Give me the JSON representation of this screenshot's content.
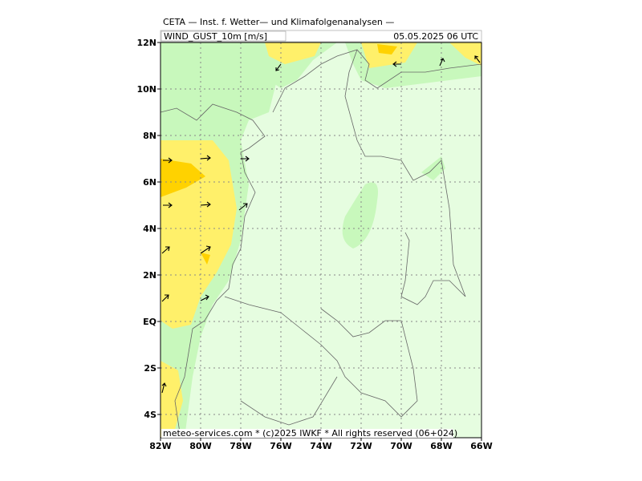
{
  "header": {
    "title": "CETA — Inst. f. Wetter— und Klimafolgenanalysen —",
    "variable": "WIND_GUST_10m [m/s]",
    "valid_time": "05.05.2025 06 UTC"
  },
  "map": {
    "lonlim": [
      -82,
      -66
    ],
    "latlim": [
      -5,
      12
    ],
    "lon_ticks": [
      {
        "value": -82,
        "label": "82W"
      },
      {
        "value": -80,
        "label": "80W"
      },
      {
        "value": -78,
        "label": "78W"
      },
      {
        "value": -76,
        "label": "76W"
      },
      {
        "value": -74,
        "label": "74W"
      },
      {
        "value": -72,
        "label": "72W"
      },
      {
        "value": -70,
        "label": "70W"
      },
      {
        "value": -68,
        "label": "68W"
      },
      {
        "value": -66,
        "label": "66W"
      }
    ],
    "lat_ticks": [
      {
        "value": 12,
        "label": "12N"
      },
      {
        "value": 10,
        "label": "10N"
      },
      {
        "value": 8,
        "label": "8N"
      },
      {
        "value": 6,
        "label": "6N"
      },
      {
        "value": 4,
        "label": "4N"
      },
      {
        "value": 2,
        "label": "2N"
      },
      {
        "value": 0,
        "label": "EQ"
      },
      {
        "value": -2,
        "label": "2S"
      },
      {
        "value": -4,
        "label": "4S"
      }
    ]
  },
  "footer": "meteo-services.com * (c)2025 IWKF * All rights reserved (06+024)"
}
